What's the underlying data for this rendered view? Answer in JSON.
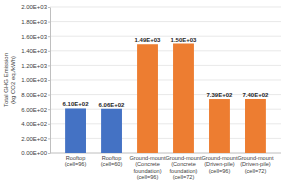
{
  "chart_data": {
    "type": "bar",
    "y_label": "Total GHG Emission (kg CO2 eq./kWh)",
    "categories": [
      "Rooftop (cell=96)",
      "Rooftop (cell=60)",
      "Ground-mount (Concrete foundation) (cell=96)",
      "Ground-mount (Concrete foundation) (cell=72)",
      "Ground-mount (Driven-pile) (cell=96)",
      "Ground-mount (Driven-pile) (cell=72)"
    ],
    "values": [
      610,
      606,
      1490,
      1500,
      739,
      740
    ],
    "value_labels": [
      "6.10E+02",
      "6.06E+02",
      "1.49E+03",
      "1.50E+03",
      "7.39E+02",
      "7.40E+02"
    ],
    "colors": [
      "#4472c4",
      "#4472c4",
      "#ed7d31",
      "#ed7d31",
      "#ed7d31",
      "#ed7d31"
    ],
    "ylim": [
      0,
      2000
    ],
    "yticks": [
      {
        "value": 0,
        "label": "0.00E+00"
      },
      {
        "value": 200,
        "label": "2.00E+02"
      },
      {
        "value": 400,
        "label": "4.00E+02"
      },
      {
        "value": 600,
        "label": "6.00E+02"
      },
      {
        "value": 800,
        "label": "8.00E+02"
      },
      {
        "value": 1000,
        "label": "1.00E+03"
      },
      {
        "value": 1200,
        "label": "1.20E+03"
      },
      {
        "value": 1400,
        "label": "1.40E+03"
      },
      {
        "value": 1600,
        "label": "1.60E+03"
      },
      {
        "value": 1800,
        "label": "1.80E+03"
      },
      {
        "value": 2000,
        "label": "2.00E+03"
      }
    ],
    "grid": true,
    "data_labels": true
  }
}
